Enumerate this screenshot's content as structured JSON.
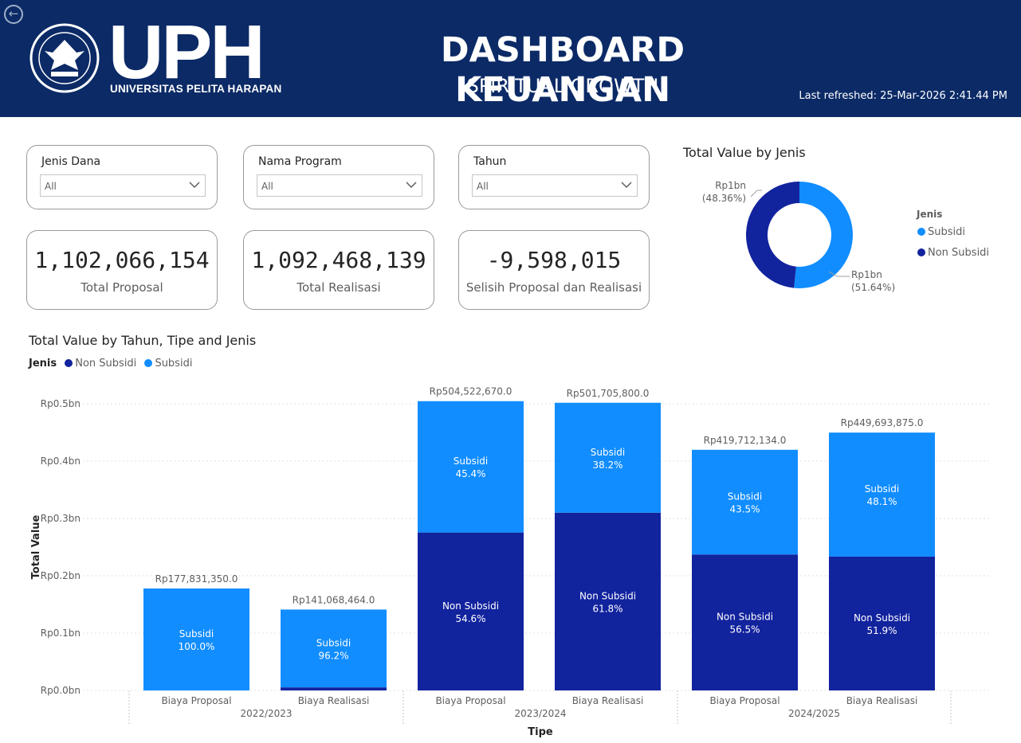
{
  "header": {
    "logo_word": "UPH",
    "logo_sub": "UNIVERSITAS PELITA HARAPAN",
    "title": "DASHBOARD KEUANGAN",
    "subtitle": "SPIRITUAL GROWTH",
    "last_refreshed": "Last refreshed: 25-Mar-2026 2:41.44 PM",
    "back_icon": "back-arrow-icon",
    "seal_icon": "eagle-seal-icon"
  },
  "filters": [
    {
      "label": "Jenis Dana",
      "value": "All"
    },
    {
      "label": "Nama Program",
      "value": "All"
    },
    {
      "label": "Tahun",
      "value": "All"
    }
  ],
  "cards": [
    {
      "value": "1,102,066,154",
      "label": "Total Proposal"
    },
    {
      "value": "1,092,468,139",
      "label": "Total Realisasi"
    },
    {
      "value": "-9,598,015",
      "label": "Selisih Proposal dan Realisasi"
    }
  ],
  "colors": {
    "subsidi": "#118DFF",
    "non_subsidi": "#12239E",
    "header_bg": "#0b2a66"
  },
  "donut": {
    "title": "Total Value by Jenis",
    "legend_title": "Jenis",
    "legend": [
      "Subsidi",
      "Non Subsidi"
    ],
    "label_non_subsidi": "Rp1bn",
    "pct_non_subsidi": "(48.36%)",
    "label_subsidi": "Rp1bn",
    "pct_subsidi": "(51.64%)"
  },
  "chart_data": [
    {
      "type": "pie",
      "title": "Total Value by Jenis",
      "labels": [
        "Subsidi",
        "Non Subsidi"
      ],
      "values": [
        51.64,
        48.36
      ],
      "unit": "%"
    },
    {
      "type": "bar",
      "title": "Total Value by Tahun, Tipe and Jenis",
      "legend_title": "Jenis",
      "legend": [
        "Non Subsidi",
        "Subsidi"
      ],
      "xlabel": "Tipe",
      "ylabel": "Total Value",
      "ylim": [
        0,
        0.5
      ],
      "yticks": [
        "Rp0.0bn",
        "Rp0.1bn",
        "Rp0.2bn",
        "Rp0.3bn",
        "Rp0.4bn",
        "Rp0.5bn"
      ],
      "groups": [
        "2022/2023",
        "2023/2024",
        "2024/2025"
      ],
      "categories": [
        "Biaya Proposal",
        "Biaya Realisasi",
        "Biaya Proposal",
        "Biaya Realisasi",
        "Biaya Proposal",
        "Biaya Realisasi"
      ],
      "totals": [
        177831350.0,
        141068464.0,
        504522670.0,
        501705800.0,
        419712134.0,
        449693875.0
      ],
      "total_labels": [
        "Rp177,831,350.0",
        "Rp141,068,464.0",
        "Rp504,522,670.0",
        "Rp501,705,800.0",
        "Rp419,712,134.0",
        "Rp449,693,875.0"
      ],
      "series": [
        {
          "name": "Non Subsidi",
          "pct": [
            0.0,
            3.8,
            54.6,
            61.8,
            56.5,
            51.9
          ],
          "labels": [
            "",
            "",
            "54.6%",
            "61.8%",
            "56.5%",
            "51.9%"
          ]
        },
        {
          "name": "Subsidi",
          "pct": [
            100.0,
            96.2,
            45.4,
            38.2,
            43.5,
            48.1
          ],
          "labels": [
            "100.0%",
            "96.2%",
            "45.4%",
            "38.2%",
            "43.5%",
            "48.1%"
          ]
        }
      ]
    }
  ]
}
